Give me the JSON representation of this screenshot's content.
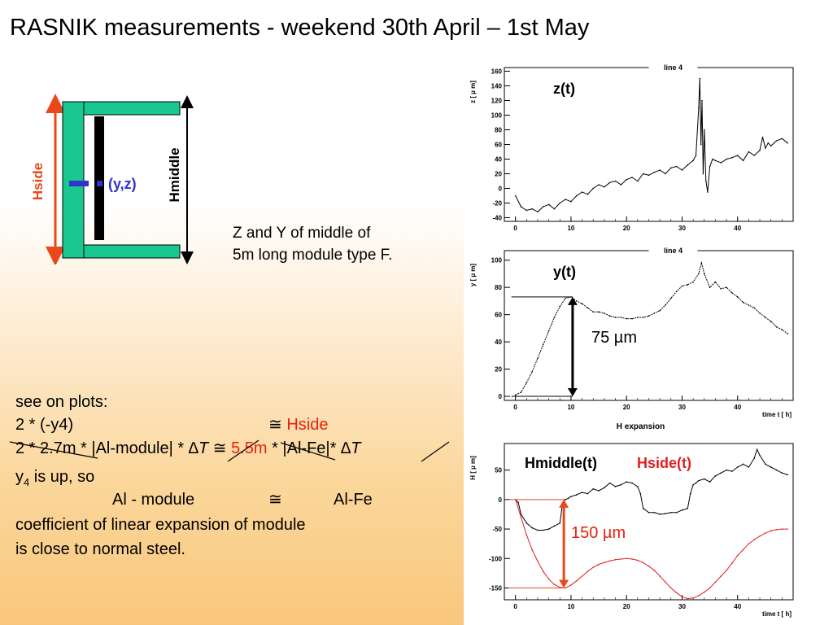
{
  "slide": {
    "title": "RASNIK measurements - weekend 30th April – 1st May"
  },
  "diagram": {
    "hside_label": "Hside",
    "hmiddle_label": "Hmiddle",
    "point_label": "(y,z)",
    "description_line1": "Z and Y of middle of",
    "description_line2": "5m long module type F.",
    "colors": {
      "module": "#19c890",
      "hside_arrow": "#e8491c",
      "point": "#3333cc"
    }
  },
  "notes": {
    "line1": "see on plots:",
    "line2_left": "2 * (-y4)",
    "approx": "≅",
    "line2_right": "Hside",
    "line3_a": "2 * 2.7m * |Al-module| * ",
    "delta_t": "∆T",
    "line3_val": "5.5m",
    "line3_b": " * |Al-Fe|* ",
    "line4_a": "y",
    "line4_sub": "4",
    "line4_b": " is up, so",
    "line5_left": "Al - module",
    "line5_right": "Al-Fe",
    "line6": "coefficient of linear expansion of module",
    "line7": "is close to normal steel."
  },
  "annotations": {
    "y_delta": "75 µm",
    "h_delta": "150 µm"
  },
  "chart_data": [
    {
      "type": "line",
      "title": "line 4",
      "series_label": "z(t)",
      "ylabel": "z [ µ m]",
      "xlim": [
        -2,
        50
      ],
      "ylim": [
        -45,
        165
      ],
      "xticks": [
        0,
        10,
        20,
        30,
        40
      ],
      "yticks": [
        -40,
        -20,
        0,
        20,
        40,
        60,
        80,
        100,
        120,
        140,
        160
      ],
      "series": [
        {
          "x": [
            0,
            1,
            2,
            3,
            4,
            5,
            6,
            7,
            8,
            9,
            10,
            11,
            12,
            13,
            14,
            15,
            16,
            17,
            18,
            19,
            20,
            21,
            22,
            23,
            24,
            25,
            26,
            27,
            28,
            29,
            30,
            31,
            32,
            32.5,
            33,
            33.2,
            33.4,
            33.6,
            33.8,
            34,
            34.3,
            34.6,
            35,
            35.5,
            36,
            37,
            38,
            39,
            40,
            41,
            42,
            43,
            44,
            44.5,
            45,
            45.5,
            46,
            47,
            48,
            49
          ],
          "y": [
            -10,
            -25,
            -30,
            -28,
            -32,
            -25,
            -22,
            -28,
            -20,
            -15,
            -18,
            -10,
            -5,
            -8,
            0,
            5,
            2,
            8,
            10,
            5,
            12,
            15,
            10,
            20,
            18,
            22,
            25,
            20,
            28,
            30,
            25,
            32,
            38,
            45,
            110,
            150,
            60,
            120,
            20,
            80,
            10,
            -5,
            30,
            40,
            38,
            35,
            40,
            42,
            45,
            38,
            50,
            45,
            52,
            70,
            55,
            62,
            58,
            65,
            68,
            62
          ]
        }
      ]
    },
    {
      "type": "line",
      "title": "line 4",
      "series_label": "y(t)",
      "ylabel": "y [ µ m]",
      "xlabel": "time t [ h]",
      "caption": "H expansion",
      "xlim": [
        -2,
        50
      ],
      "ylim": [
        -3,
        107
      ],
      "xticks": [
        0,
        10,
        20,
        30,
        40
      ],
      "yticks": [
        0,
        20,
        40,
        60,
        80,
        100
      ],
      "series": [
        {
          "x": [
            0,
            1,
            2,
            3,
            4,
            5,
            6,
            7,
            8,
            9,
            10,
            11,
            12,
            13,
            14,
            15,
            16,
            17,
            18,
            19,
            20,
            21,
            22,
            23,
            24,
            25,
            26,
            27,
            28,
            29,
            30,
            31,
            32,
            33,
            33.5,
            34,
            35,
            36,
            37,
            38,
            39,
            40,
            41,
            42,
            43,
            44,
            45,
            46,
            47,
            48,
            49
          ],
          "y": [
            1,
            3,
            10,
            18,
            28,
            38,
            48,
            58,
            66,
            72,
            73,
            70,
            68,
            65,
            62,
            62,
            61,
            59,
            58,
            58,
            57,
            57,
            58,
            58,
            59,
            61,
            63,
            67,
            72,
            77,
            81,
            82,
            84,
            90,
            98,
            90,
            80,
            84,
            79,
            80,
            76,
            73,
            69,
            67,
            65,
            61,
            58,
            55,
            51,
            49,
            46
          ]
        }
      ]
    },
    {
      "type": "line",
      "series_label_1": "Hmiddle(t)",
      "series_label_2": "Hside(t)",
      "ylabel": "H [ µ m]",
      "xlabel": "time t [ h]",
      "xlim": [
        -2,
        50
      ],
      "ylim": [
        -170,
        95
      ],
      "xticks": [
        0,
        10,
        20,
        30,
        40
      ],
      "yticks": [
        -150,
        -100,
        -50,
        0,
        50
      ],
      "series": [
        {
          "color": "#000000",
          "x": [
            0,
            0.5,
            1,
            2,
            3,
            4,
            5,
            6,
            7,
            8,
            8.5,
            9,
            9.5,
            10,
            11,
            12,
            13,
            14,
            15,
            16,
            17,
            18,
            19,
            20,
            21,
            22,
            22.5,
            23,
            24,
            25,
            26,
            27,
            28,
            29,
            30,
            31,
            31.5,
            32,
            32.5,
            33,
            34,
            35,
            36,
            37,
            38,
            39,
            40,
            41,
            42,
            43,
            43.5,
            44,
            45,
            46,
            47,
            48,
            49
          ],
          "y": [
            0,
            -5,
            -25,
            -40,
            -48,
            -52,
            -52,
            -50,
            -45,
            -40,
            -5,
            0,
            2,
            5,
            8,
            12,
            10,
            18,
            15,
            20,
            28,
            22,
            25,
            30,
            28,
            22,
            10,
            -15,
            -22,
            -22,
            -25,
            -24,
            -22,
            -22,
            -18,
            -15,
            10,
            25,
            28,
            32,
            35,
            30,
            40,
            45,
            50,
            48,
            55,
            60,
            55,
            70,
            85,
            75,
            60,
            55,
            50,
            45,
            42
          ]
        },
        {
          "color": "#e02020",
          "x": [
            0,
            1,
            2,
            3,
            4,
            5,
            6,
            7,
            8,
            9,
            10,
            11,
            12,
            13,
            14,
            15,
            16,
            17,
            18,
            19,
            20,
            21,
            22,
            23,
            24,
            25,
            26,
            27,
            28,
            29,
            30,
            31,
            32,
            33,
            34,
            35,
            36,
            37,
            38,
            39,
            40,
            41,
            42,
            43,
            44,
            45,
            46,
            47,
            48,
            49
          ],
          "y": [
            0,
            -30,
            -60,
            -85,
            -105,
            -122,
            -135,
            -144,
            -149,
            -150,
            -145,
            -138,
            -130,
            -122,
            -115,
            -110,
            -107,
            -104,
            -102,
            -101,
            -100,
            -101,
            -103,
            -107,
            -113,
            -120,
            -130,
            -140,
            -150,
            -158,
            -165,
            -168,
            -167,
            -163,
            -157,
            -150,
            -140,
            -130,
            -120,
            -108,
            -95,
            -85,
            -75,
            -68,
            -62,
            -57,
            -53,
            -51,
            -50,
            -50
          ]
        }
      ]
    }
  ]
}
